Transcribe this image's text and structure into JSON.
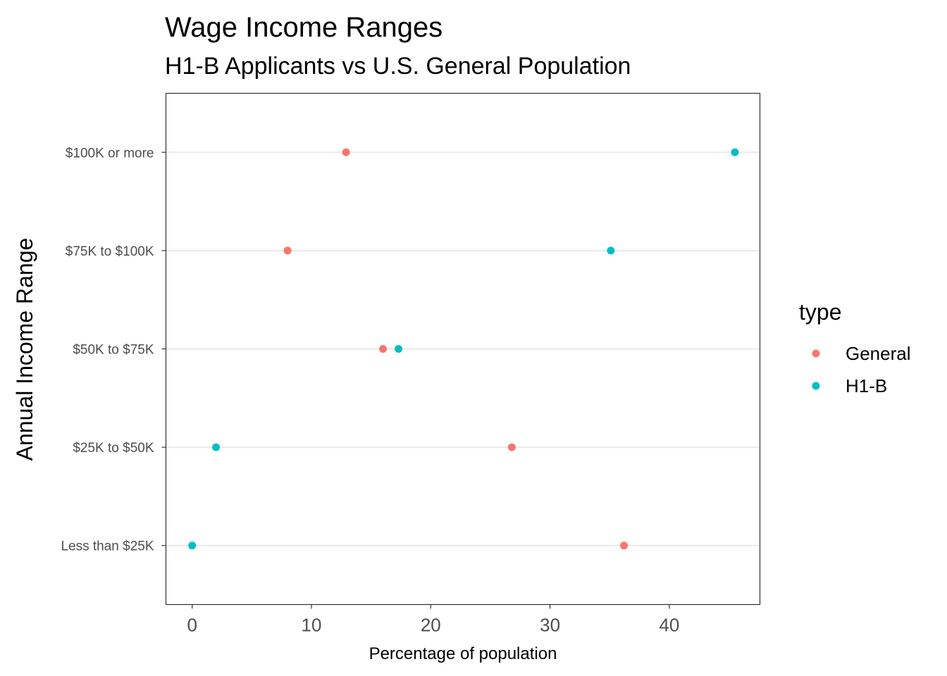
{
  "chart_data": {
    "type": "scatter",
    "title": "Wage Income Ranges",
    "subtitle": "H1-B Applicants vs U.S. General Population",
    "xlabel": "Percentage of population",
    "ylabel": "Annual Income Range",
    "xlim": [
      -2.2,
      47.6
    ],
    "x_ticks": [
      0,
      10,
      20,
      30,
      40
    ],
    "categories": [
      "Less than $25K",
      "$25K to $50K",
      "$50K to $75K",
      "$75K to $100K",
      "$100K or more"
    ],
    "grid": "horizontal major lines at categories",
    "legend": {
      "title": "type",
      "position": "right"
    },
    "series": [
      {
        "name": "General",
        "color": "#F8766D",
        "values": [
          36.2,
          26.8,
          16.0,
          8.0,
          12.9
        ]
      },
      {
        "name": "H1-B",
        "color": "#00BFC4",
        "values": [
          0.0,
          2.0,
          17.3,
          35.1,
          45.5
        ]
      }
    ]
  }
}
